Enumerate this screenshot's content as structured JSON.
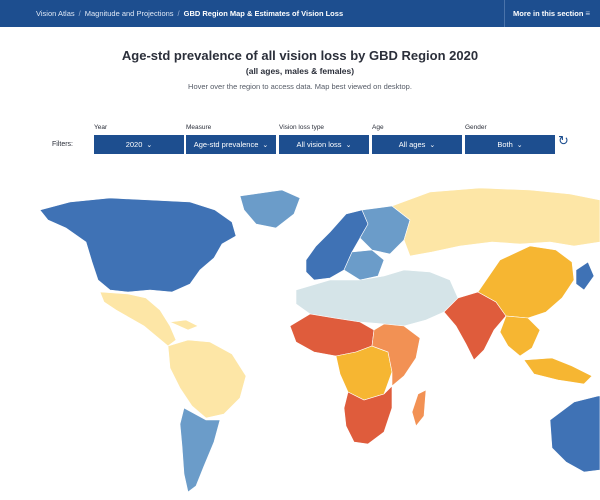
{
  "breadcrumb": {
    "items": [
      "Vision Atlas",
      "Magnitude and Projections",
      "GBD Region Map & Estimates of Vision Loss"
    ]
  },
  "header": {
    "more_label": "More in this section"
  },
  "title": "Age-std prevalence of all vision loss by GBD Region 2020",
  "subtitle": "(all ages, males & females)",
  "hint": "Hover over the region to access data. Map best viewed on desktop.",
  "filters": {
    "label": "Filters:",
    "items": [
      {
        "label": "Year",
        "value": "2020"
      },
      {
        "label": "Measure",
        "value": "Age-std prevalence"
      },
      {
        "label": "Vision loss type",
        "value": "All vision loss"
      },
      {
        "label": "Age",
        "value": "All ages"
      },
      {
        "label": "Gender",
        "value": "Both"
      }
    ]
  },
  "colors": {
    "brand": "#1d4e8f",
    "dark_blue": "#3f72b5",
    "light_blue": "#6b9cc9",
    "pale": "#d5e4e8",
    "light_yellow": "#fde6a6",
    "yellow_orange": "#f6b632",
    "orange": "#f29154",
    "red_orange": "#df5c3c"
  }
}
